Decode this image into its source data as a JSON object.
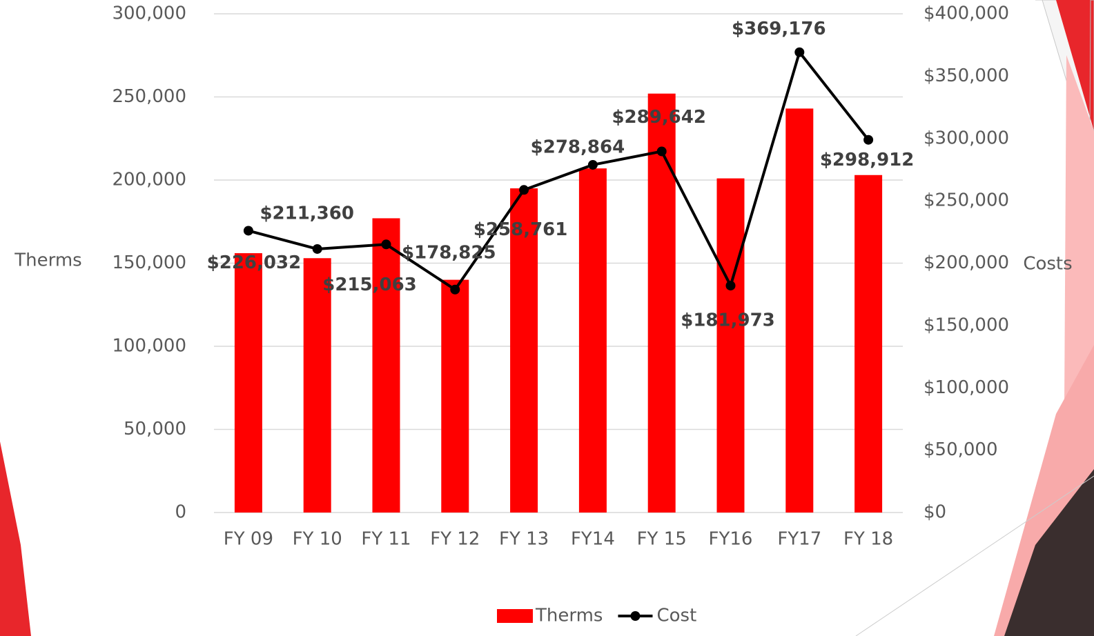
{
  "chart_data": {
    "type": "bar_line",
    "categories": [
      "FY 09",
      "FY 10",
      "FY 11",
      "FY 12",
      "FY 13",
      "FY14",
      "FY 15",
      "FY16",
      "FY17",
      "FY 18"
    ],
    "series": [
      {
        "name": "Therms",
        "type": "bar",
        "color": "#ff0000",
        "axis": "y",
        "values": [
          156000,
          153000,
          177000,
          140000,
          195000,
          207000,
          252000,
          201000,
          243000,
          203000
        ]
      },
      {
        "name": "Cost",
        "type": "line",
        "color": "#000000",
        "axis": "y2",
        "values": [
          226032,
          211360,
          215063,
          178825,
          258761,
          278864,
          289642,
          181973,
          369176,
          298912
        ],
        "value_labels": [
          "$226,032",
          "$211,360",
          "$215,063",
          "$178,825",
          "$258,761",
          "$278,864",
          "$289,642",
          "$181,973",
          "$369,176",
          "$298,912"
        ]
      }
    ],
    "ylabel": "Therms",
    "y2label": "Costs",
    "ylim": [
      0,
      300000
    ],
    "yticks": [
      0,
      {
        "value": 50000,
        "label": "50,000"
      },
      {
        "value": 100000,
        "label": "100,000"
      },
      {
        "value": 150000,
        "label": "150,000"
      },
      {
        "value": 200000,
        "label": "200,000"
      },
      {
        "value": 250000,
        "label": "250,000"
      },
      {
        "value": 300000,
        "label": "300,000"
      }
    ],
    "y2lim": [
      0,
      400000
    ],
    "y2ticks": [
      {
        "value": 0,
        "label": "$0"
      },
      {
        "value": 50000,
        "label": "$50,000"
      },
      {
        "value": 100000,
        "label": "$100,000"
      },
      {
        "value": 150000,
        "label": "$150,000"
      },
      {
        "value": 200000,
        "label": "$200,000"
      },
      {
        "value": 250000,
        "label": "$250,000"
      },
      {
        "value": 300000,
        "label": "$300,000"
      },
      {
        "value": 350000,
        "label": "$350,000"
      },
      {
        "value": 400000,
        "label": "$400,000"
      }
    ],
    "grid": true,
    "legend": "bottom"
  }
}
